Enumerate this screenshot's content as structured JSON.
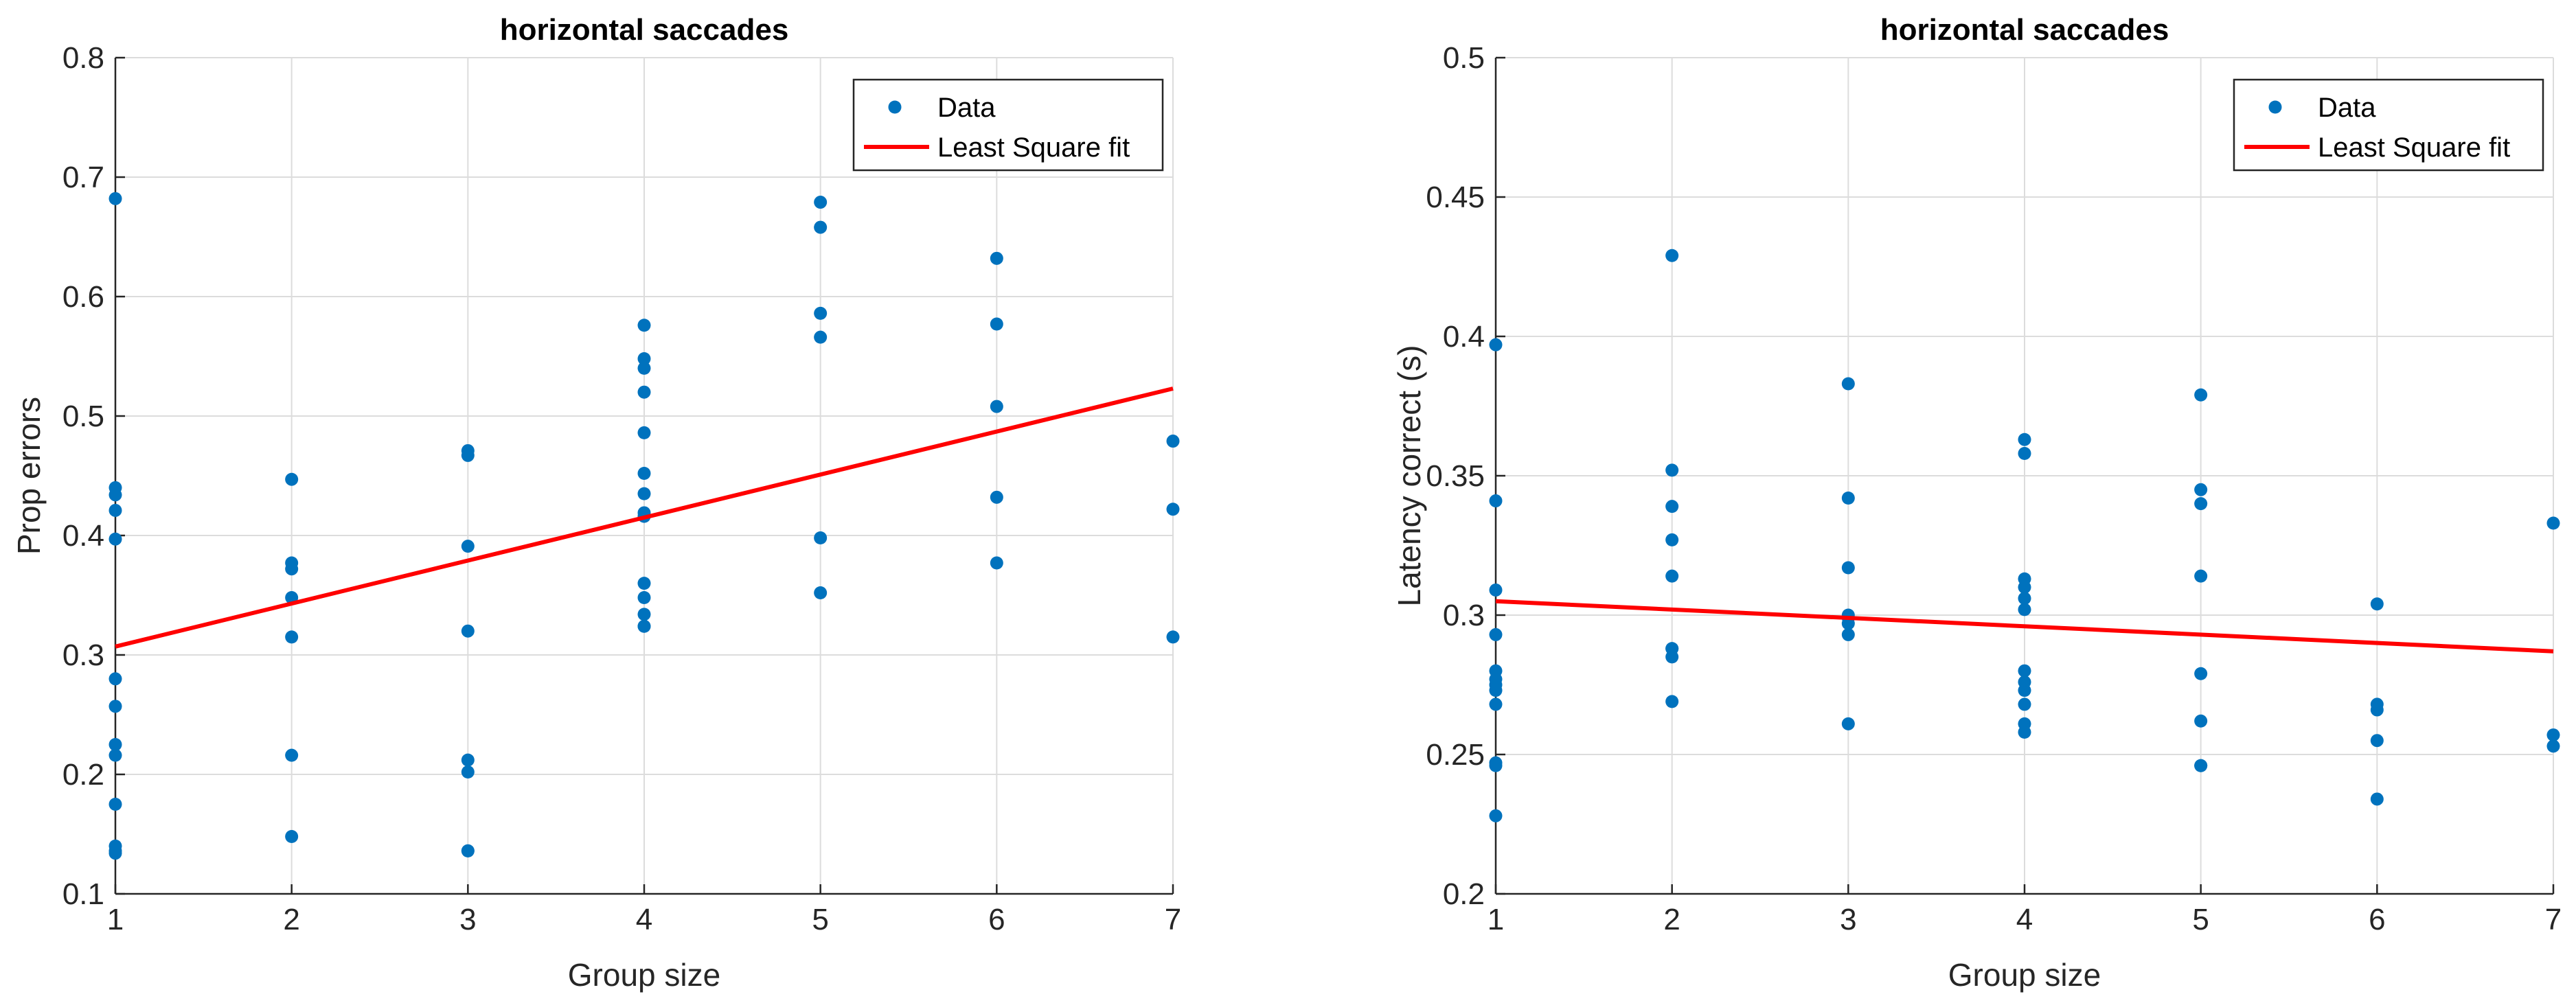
{
  "chart_data": [
    {
      "type": "scatter",
      "title": "horizontal saccades",
      "xlabel": "Group size",
      "ylabel": "Prop errors",
      "xlim": [
        1,
        7
      ],
      "ylim": [
        0.1,
        0.8
      ],
      "xticks": [
        1,
        2,
        3,
        4,
        5,
        6,
        7
      ],
      "yticks": [
        0.1,
        0.2,
        0.3,
        0.4,
        0.5,
        0.6,
        0.7,
        0.8
      ],
      "grid": true,
      "legend": {
        "position": "top-right",
        "entries": [
          "Data",
          "Least Square fit"
        ]
      },
      "series": [
        {
          "name": "Data",
          "kind": "scatter",
          "color": "#0072BD",
          "x": [
            1,
            1,
            1,
            1,
            1,
            1,
            1,
            1,
            1,
            1,
            1,
            1,
            1,
            2,
            2,
            2,
            2,
            2,
            2,
            2,
            3,
            3,
            3,
            3,
            3,
            3,
            3,
            3,
            4,
            4,
            4,
            4,
            4,
            4,
            4,
            4,
            4,
            4,
            4,
            4,
            4,
            4,
            5,
            5,
            5,
            5,
            5,
            5,
            6,
            6,
            6,
            6,
            6,
            7,
            7,
            7
          ],
          "y": [
            0.682,
            0.44,
            0.434,
            0.421,
            0.397,
            0.28,
            0.257,
            0.225,
            0.216,
            0.175,
            0.14,
            0.136,
            0.134,
            0.447,
            0.377,
            0.372,
            0.348,
            0.315,
            0.216,
            0.148,
            0.471,
            0.467,
            0.391,
            0.32,
            0.212,
            0.202,
            0.136,
            0.136,
            0.576,
            0.548,
            0.54,
            0.52,
            0.486,
            0.452,
            0.435,
            0.419,
            0.416,
            0.36,
            0.348,
            0.334,
            0.324,
            0.324,
            0.679,
            0.658,
            0.586,
            0.566,
            0.398,
            0.352,
            0.632,
            0.577,
            0.508,
            0.432,
            0.377,
            0.479,
            0.422,
            0.315
          ]
        },
        {
          "name": "Least Square fit",
          "kind": "line",
          "color": "#FF0000",
          "x": [
            1,
            7
          ],
          "y": [
            0.307,
            0.523
          ]
        }
      ]
    },
    {
      "type": "scatter",
      "title": "horizontal saccades",
      "xlabel": "Group size",
      "ylabel": "Latency correct (s)",
      "xlim": [
        1,
        7
      ],
      "ylim": [
        0.2,
        0.5
      ],
      "xticks": [
        1,
        2,
        3,
        4,
        5,
        6,
        7
      ],
      "yticks": [
        0.2,
        0.25,
        0.3,
        0.35,
        0.4,
        0.45,
        0.5
      ],
      "grid": true,
      "legend": {
        "position": "top-right",
        "entries": [
          "Data",
          "Least Square fit"
        ]
      },
      "series": [
        {
          "name": "Data",
          "kind": "scatter",
          "color": "#0072BD",
          "x": [
            1,
            1,
            1,
            1,
            1,
            1,
            1,
            1,
            1,
            1,
            1,
            1,
            2,
            2,
            2,
            2,
            2,
            2,
            2,
            2,
            2,
            3,
            3,
            3,
            3,
            3,
            3,
            3,
            3,
            4,
            4,
            4,
            4,
            4,
            4,
            4,
            4,
            4,
            4,
            4,
            4,
            5,
            5,
            5,
            5,
            5,
            5,
            5,
            5,
            6,
            6,
            6,
            6,
            6,
            7,
            7,
            7
          ],
          "y": [
            0.397,
            0.341,
            0.309,
            0.293,
            0.28,
            0.277,
            0.275,
            0.273,
            0.268,
            0.247,
            0.246,
            0.228,
            0.429,
            0.352,
            0.339,
            0.327,
            0.314,
            0.288,
            0.288,
            0.285,
            0.269,
            0.383,
            0.342,
            0.317,
            0.3,
            0.299,
            0.297,
            0.293,
            0.261,
            0.363,
            0.358,
            0.313,
            0.31,
            0.306,
            0.302,
            0.28,
            0.276,
            0.273,
            0.268,
            0.261,
            0.258,
            0.379,
            0.345,
            0.34,
            0.314,
            0.279,
            0.262,
            0.246,
            0.246,
            0.304,
            0.268,
            0.266,
            0.255,
            0.234,
            0.333,
            0.257,
            0.253
          ]
        },
        {
          "name": "Least Square fit",
          "kind": "line",
          "color": "#FF0000",
          "x": [
            1,
            7
          ],
          "y": [
            0.305,
            0.287
          ]
        }
      ]
    }
  ]
}
